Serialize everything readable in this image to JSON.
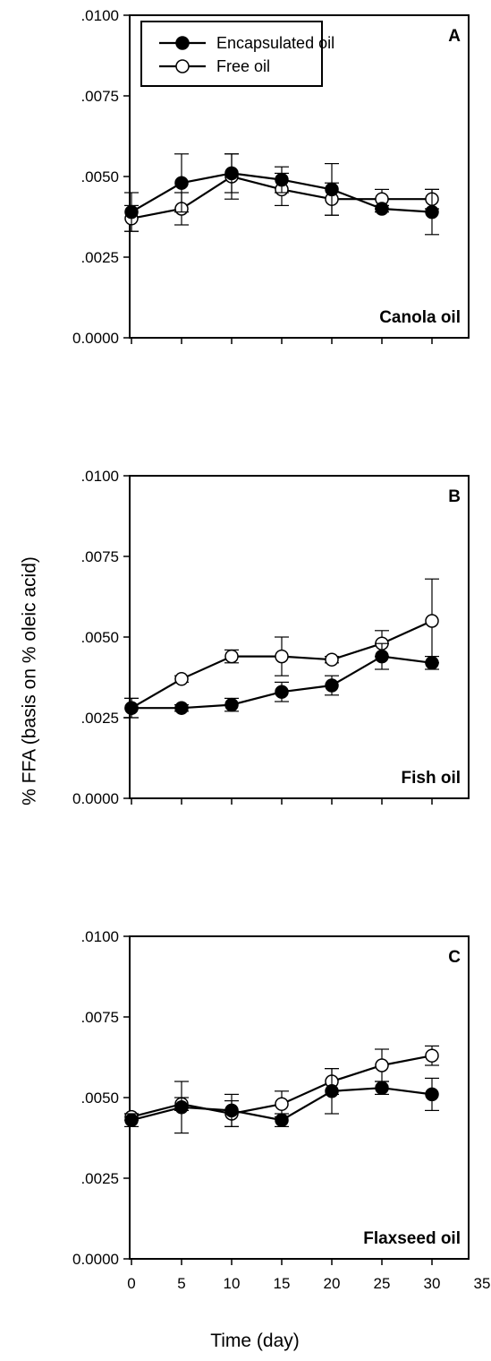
{
  "chart_data": {
    "type": "line",
    "ylabel": "% FFA (basis on % oleic acid)",
    "xlabel": "Time (day)",
    "x_ticks": [
      "0",
      "5",
      "10",
      "15",
      "20",
      "25",
      "30",
      "35"
    ],
    "y_ticks": [
      "0.0000",
      ".0025",
      ".0050",
      ".0075",
      ".0100"
    ],
    "xlim": [
      -1,
      35
    ],
    "ylim": [
      0,
      0.01
    ],
    "legend": {
      "position": "top-left",
      "entries": [
        "Encapsulated oil",
        "Free oil"
      ]
    },
    "colors": {
      "encapsulated_marker": "#000000",
      "free_marker": "#ffffff",
      "line": "#000000"
    },
    "panels": [
      {
        "letter": "A",
        "name": "Canola oil",
        "series": [
          {
            "name": "Encapsulated oil",
            "marker": "filled-circle",
            "x": [
              0,
              5,
              10,
              15,
              20,
              25,
              30
            ],
            "y": [
              0.0039,
              0.0048,
              0.0051,
              0.0049,
              0.0046,
              0.004,
              0.0039
            ],
            "err": [
              0.0006,
              0.0009,
              0.0006,
              0.0004,
              0.0008,
              0.0001,
              0.0007
            ]
          },
          {
            "name": "Free oil",
            "marker": "open-circle",
            "x": [
              0,
              5,
              10,
              15,
              20,
              25,
              30
            ],
            "y": [
              0.0037,
              0.004,
              0.005,
              0.0046,
              0.0043,
              0.0043,
              0.0043
            ],
            "err": [
              0.0004,
              0.0005,
              0.0007,
              0.0005,
              0.0005,
              0.0003,
              0.0003
            ]
          }
        ]
      },
      {
        "letter": "B",
        "name": "Fish oil",
        "series": [
          {
            "name": "Encapsulated oil",
            "marker": "filled-circle",
            "x": [
              0,
              5,
              10,
              15,
              20,
              25,
              30
            ],
            "y": [
              0.0028,
              0.0028,
              0.0029,
              0.0033,
              0.0035,
              0.0044,
              0.0042
            ],
            "err": [
              0.0003,
              0.0001,
              0.0002,
              0.0003,
              0.0003,
              0.0004,
              0.0002
            ]
          },
          {
            "name": "Free oil",
            "marker": "open-circle",
            "x": [
              0,
              5,
              10,
              15,
              20,
              25,
              30
            ],
            "y": [
              0.0028,
              0.0037,
              0.0044,
              0.0044,
              0.0043,
              0.0048,
              0.0055
            ],
            "err": [
              0.0003,
              0.0001,
              0.0002,
              0.0006,
              0.0001,
              0.0004,
              0.0013
            ]
          }
        ]
      },
      {
        "letter": "C",
        "name": "Flaxseed oil",
        "series": [
          {
            "name": "Encapsulated oil",
            "marker": "filled-circle",
            "x": [
              0,
              5,
              10,
              15,
              20,
              25,
              30
            ],
            "y": [
              0.0043,
              0.0047,
              0.0046,
              0.0043,
              0.0052,
              0.0053,
              0.0051
            ],
            "err": [
              0.0002,
              0.0008,
              0.0005,
              0.0002,
              0.0007,
              0.0002,
              0.0005
            ]
          },
          {
            "name": "Free oil",
            "marker": "open-circle",
            "x": [
              0,
              5,
              10,
              15,
              20,
              25,
              30
            ],
            "y": [
              0.0044,
              0.0048,
              0.0045,
              0.0048,
              0.0055,
              0.006,
              0.0063
            ],
            "err": [
              0.0001,
              0.0002,
              0.0004,
              0.0004,
              0.0004,
              0.0005,
              0.0003
            ]
          }
        ]
      }
    ]
  }
}
